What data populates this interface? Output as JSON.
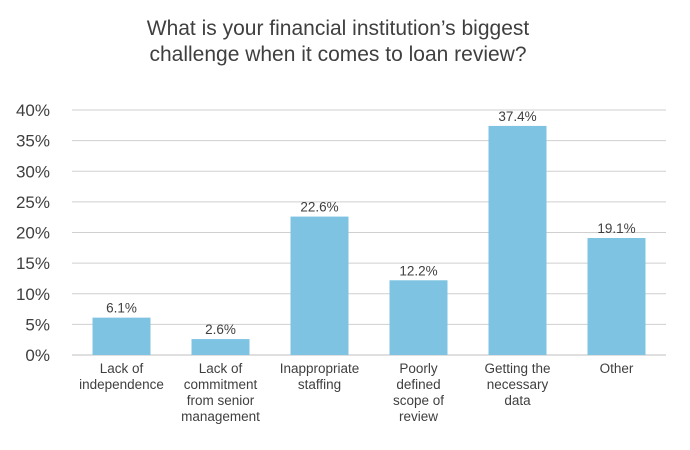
{
  "chart_data": {
    "type": "bar",
    "title_lines": [
      "What is your financial institution’s biggest",
      "challenge when it comes to loan review?"
    ],
    "categories": [
      [
        "Lack of",
        "independence"
      ],
      [
        "Lack of",
        "commitment",
        "from senior",
        "management"
      ],
      [
        "Inappropriate",
        "staffing"
      ],
      [
        "Poorly",
        "defined",
        "scope of",
        "review"
      ],
      [
        "Getting the",
        "necessary",
        "data"
      ],
      [
        "Other"
      ]
    ],
    "values": [
      6.1,
      2.6,
      22.6,
      12.2,
      37.4,
      19.1
    ],
    "data_labels": [
      "6.1%",
      "2.6%",
      "22.6%",
      "12.2%",
      "37.4%",
      "19.1%"
    ],
    "y_ticks": [
      "0%",
      "5%",
      "10%",
      "15%",
      "20%",
      "25%",
      "30%",
      "35%",
      "40%"
    ],
    "ylim": [
      0,
      40
    ],
    "grid": true,
    "legend": "none",
    "colors": {
      "bar": "#7fc3e3",
      "text": "#3f3f3f",
      "grid": "#cfcfcf"
    }
  }
}
